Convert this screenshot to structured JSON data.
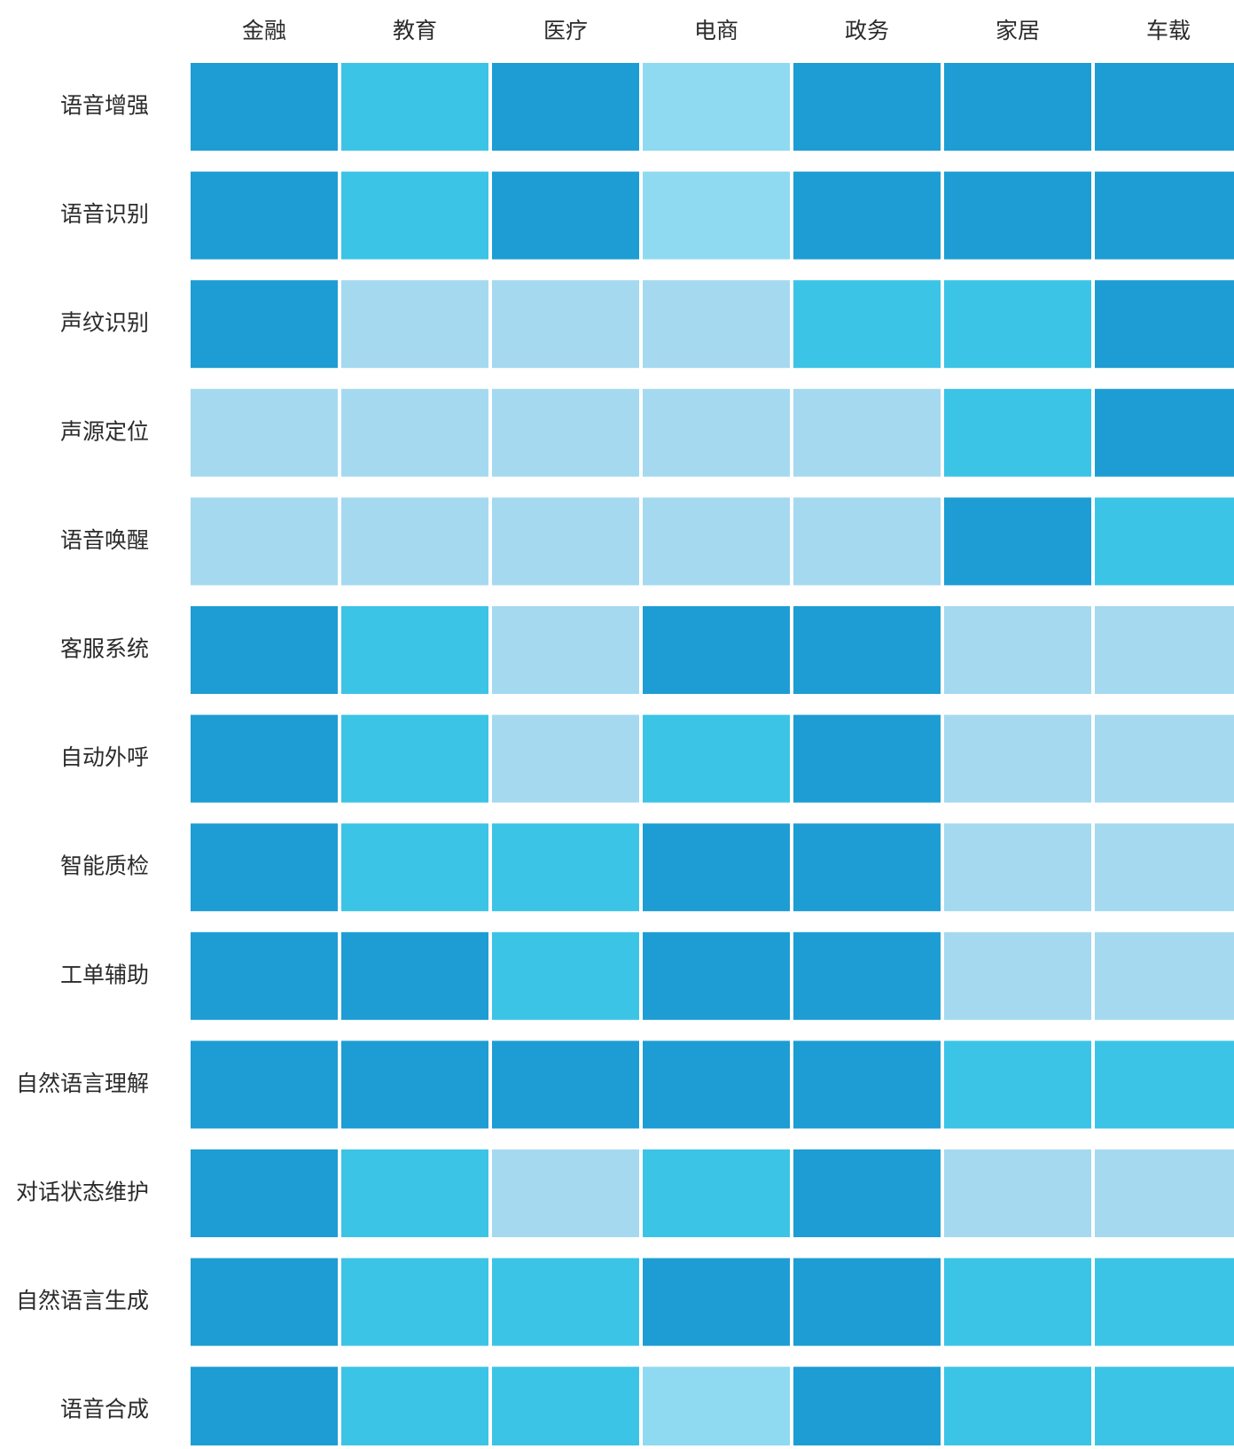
{
  "chart_data": {
    "type": "heatmap",
    "columns": [
      "金融",
      "教育",
      "医疗",
      "电商",
      "政务",
      "家居",
      "车载"
    ],
    "rows": [
      "语音增强",
      "语音识别",
      "声纹识别",
      "声源定位",
      "语音唤醒",
      "客服系统",
      "自动外呼",
      "智能质检",
      "工单辅助",
      "自然语言理解",
      "对话状态维护",
      "自然语言生成",
      "语音合成"
    ],
    "scale": {
      "1": "#a5d9f0",
      "2": "#8fdaf0",
      "3": "#3cc4e6",
      "4": "#1d9dd3"
    },
    "values": [
      [
        4,
        3,
        4,
        2,
        4,
        4,
        4
      ],
      [
        4,
        3,
        4,
        2,
        4,
        4,
        4
      ],
      [
        4,
        1,
        1,
        1,
        3,
        3,
        4
      ],
      [
        1,
        1,
        1,
        1,
        1,
        3,
        4
      ],
      [
        1,
        1,
        1,
        1,
        1,
        4,
        3
      ],
      [
        4,
        3,
        1,
        4,
        4,
        1,
        1
      ],
      [
        4,
        3,
        1,
        3,
        4,
        1,
        1
      ],
      [
        4,
        3,
        3,
        4,
        4,
        1,
        1
      ],
      [
        4,
        4,
        3,
        4,
        4,
        1,
        1
      ],
      [
        4,
        4,
        4,
        4,
        4,
        3,
        3
      ],
      [
        4,
        3,
        1,
        3,
        4,
        1,
        1
      ],
      [
        4,
        3,
        3,
        4,
        4,
        3,
        3
      ],
      [
        4,
        3,
        3,
        2,
        4,
        3,
        3
      ]
    ]
  }
}
